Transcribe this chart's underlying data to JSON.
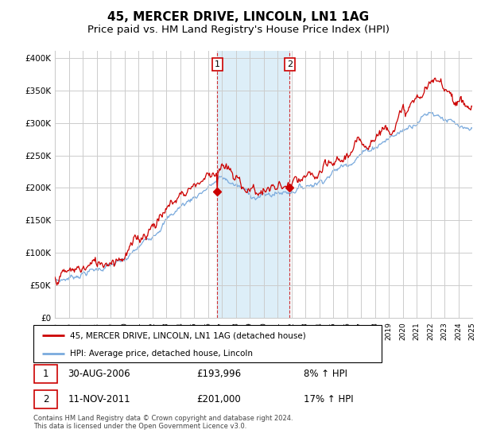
{
  "title": "45, MERCER DRIVE, LINCOLN, LN1 1AG",
  "subtitle": "Price paid vs. HM Land Registry's House Price Index (HPI)",
  "ylabel_ticks": [
    "£0",
    "£50K",
    "£100K",
    "£150K",
    "£200K",
    "£250K",
    "£300K",
    "£350K",
    "£400K"
  ],
  "ytick_values": [
    0,
    50000,
    100000,
    150000,
    200000,
    250000,
    300000,
    350000,
    400000
  ],
  "ylim": [
    0,
    410000
  ],
  "x_start_year": 1995,
  "x_end_year": 2025,
  "sale1_date": "30-AUG-2006",
  "sale1_price": 193996,
  "sale1_label": "1",
  "sale1_hpi": "8% ↑ HPI",
  "sale2_date": "11-NOV-2011",
  "sale2_price": 201000,
  "sale2_label": "2",
  "sale2_hpi": "17% ↑ HPI",
  "sale1_x": 2006.67,
  "sale2_x": 2011.87,
  "hpi_color": "#7aaadd",
  "price_color": "#cc0000",
  "shade_color": "#ddeef8",
  "grid_color": "#cccccc",
  "legend_label_price": "45, MERCER DRIVE, LINCOLN, LN1 1AG (detached house)",
  "legend_label_hpi": "HPI: Average price, detached house, Lincoln",
  "footer": "Contains HM Land Registry data © Crown copyright and database right 2024.\nThis data is licensed under the Open Government Licence v3.0.",
  "marker_box_color": "#cc0000",
  "title_fontsize": 11,
  "subtitle_fontsize": 9.5
}
